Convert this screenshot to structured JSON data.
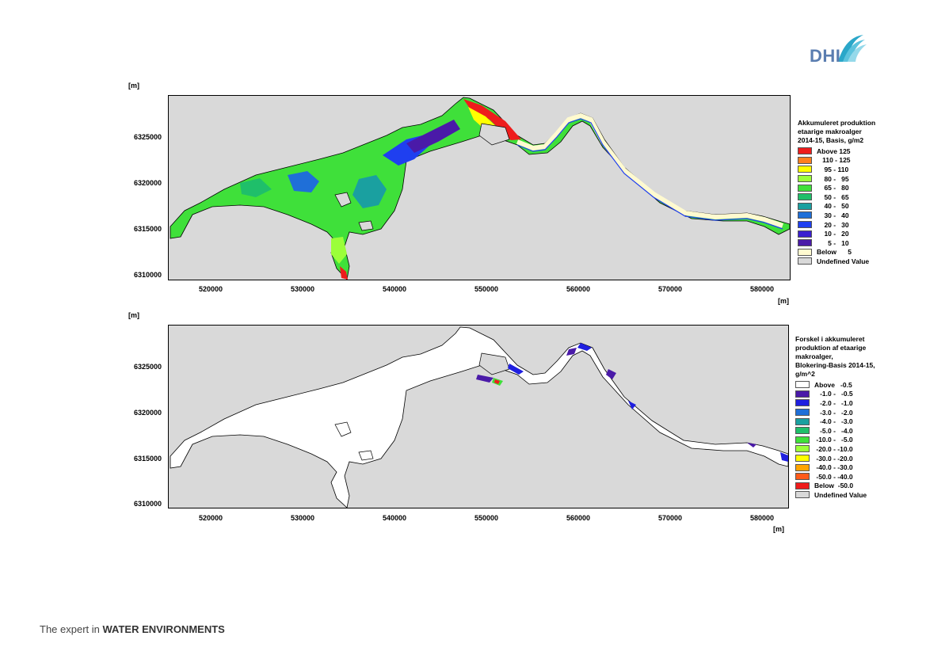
{
  "logo": {
    "text": "DHI"
  },
  "tagline": {
    "prefix": "The expert in ",
    "bold": "WATER ENVIRONMENTS"
  },
  "maps": [
    {
      "unit_y": "[m]",
      "unit_x": "[m]",
      "y_ticks": [
        "6325000",
        "6320000",
        "6315000",
        "6310000"
      ],
      "x_ticks": [
        "520000",
        "530000",
        "540000",
        "550000",
        "560000",
        "570000",
        "580000"
      ],
      "legend": {
        "title": [
          "Akkumuleret produktion",
          "etaarige makroalger",
          "2014-15, Basis, g/m2"
        ],
        "items": [
          {
            "label": "Above 125",
            "color": "#ee1c1c"
          },
          {
            "label": "   110 - 125",
            "color": "#ff7f1f"
          },
          {
            "label": "    95 - 110",
            "color": "#ffff00"
          },
          {
            "label": "    80 -   95",
            "color": "#9bff3a"
          },
          {
            "label": "    65 -   80",
            "color": "#3fe03a"
          },
          {
            "label": "    50 -   65",
            "color": "#1fbf6a"
          },
          {
            "label": "    40 -   50",
            "color": "#1aa0a0"
          },
          {
            "label": "    30 -   40",
            "color": "#1f6fd8"
          },
          {
            "label": "    20 -   30",
            "color": "#1f3ff0"
          },
          {
            "label": "    10 -   20",
            "color": "#3a1fd0"
          },
          {
            "label": "      5 -   10",
            "color": "#4a1aa8"
          },
          {
            "label": "Below      5",
            "color": "#fffad0"
          },
          {
            "label": "Undefined Value",
            "color": "#d9d9d9"
          }
        ]
      }
    },
    {
      "unit_y": "[m]",
      "unit_x": "[m]",
      "y_ticks": [
        "6325000",
        "6320000",
        "6315000",
        "6310000"
      ],
      "x_ticks": [
        "520000",
        "530000",
        "540000",
        "550000",
        "560000",
        "570000",
        "580000"
      ],
      "legend": {
        "title": [
          "Forskel i akkumuleret",
          "produktion af etaarige",
          "makroalger,",
          "Blokering-Basis 2014-15,",
          "g/m^2"
        ],
        "items": [
          {
            "label": "Above   -0.5",
            "color": "#ffffff"
          },
          {
            "label": "   -1.0 -   -0.5",
            "color": "#4a1aa8"
          },
          {
            "label": "   -2.0 -   -1.0",
            "color": "#1f1fe0"
          },
          {
            "label": "   -3.0 -   -2.0",
            "color": "#1f6fd8"
          },
          {
            "label": "   -4.0 -   -3.0",
            "color": "#1aa0a0"
          },
          {
            "label": "   -5.0 -   -4.0",
            "color": "#1fbf6a"
          },
          {
            "label": " -10.0 -   -5.0",
            "color": "#3fe03a"
          },
          {
            "label": " -20.0 - -10.0",
            "color": "#9bff3a"
          },
          {
            "label": " -30.0 - -20.0",
            "color": "#ffff00"
          },
          {
            "label": " -40.0 - -30.0",
            "color": "#ffa500"
          },
          {
            "label": " -50.0 - -40.0",
            "color": "#ff5a1a"
          },
          {
            "label": "Below  -50.0",
            "color": "#ee1c1c"
          },
          {
            "label": "Undefined Value",
            "color": "#d9d9d9"
          }
        ]
      }
    }
  ]
}
